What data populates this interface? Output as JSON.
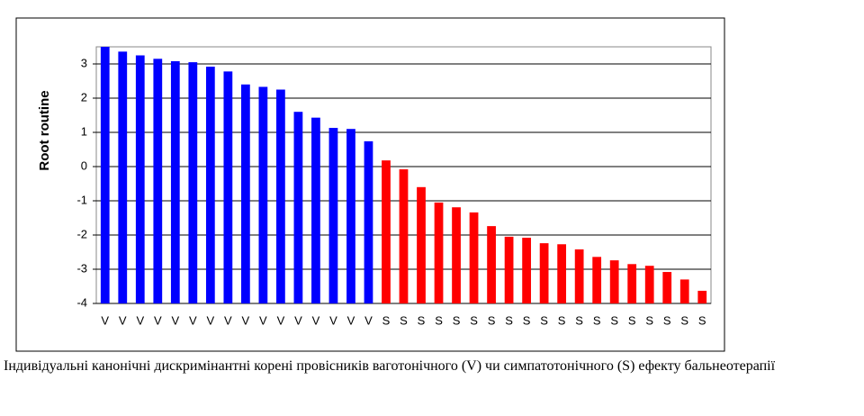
{
  "chart_data": {
    "type": "bar",
    "y_label": "Root routine",
    "caption": "Індивідуальні канонічні дискримінантні корені провісників ваготонічного (V) чи симпатотонічного (S) ефекту бальнеотерапії",
    "categories": [
      "V",
      "V",
      "V",
      "V",
      "V",
      "V",
      "V",
      "V",
      "V",
      "V",
      "V",
      "V",
      "V",
      "V",
      "V",
      "V",
      "S",
      "S",
      "S",
      "S",
      "S",
      "S",
      "S",
      "S",
      "S",
      "S",
      "S",
      "S",
      "S",
      "S",
      "S",
      "S",
      "S",
      "S",
      "S"
    ],
    "values": [
      3.5,
      3.36,
      3.25,
      3.15,
      3.08,
      3.05,
      2.92,
      2.78,
      2.4,
      2.33,
      2.25,
      1.6,
      1.43,
      1.13,
      1.1,
      0.74,
      0.18,
      -0.08,
      -0.6,
      -1.05,
      -1.19,
      -1.34,
      -1.74,
      -2.05,
      -2.08,
      -2.24,
      -2.27,
      -2.42,
      -2.64,
      -2.74,
      -2.85,
      -2.9,
      -3.08,
      -3.3,
      -3.63
    ],
    "category_colors": {
      "V": "#0000ff",
      "S": "#ff0000"
    },
    "ylim": [
      -4,
      3.5
    ],
    "yticks": [
      -4,
      -3,
      -2,
      -1,
      0,
      1,
      2,
      3
    ],
    "grid": true
  }
}
